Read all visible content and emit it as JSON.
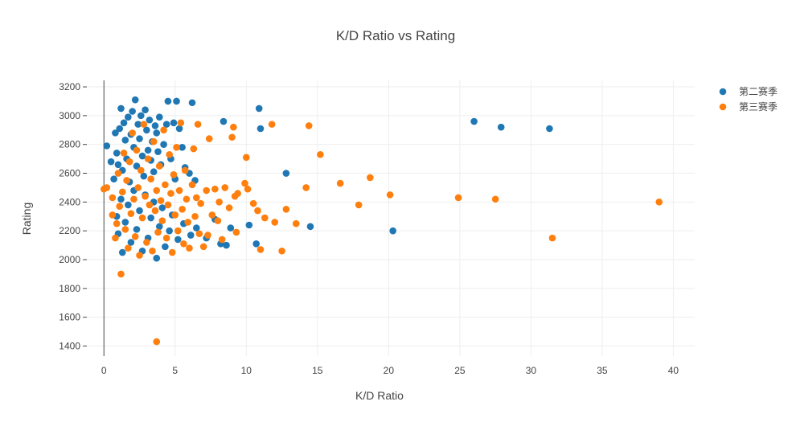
{
  "chart_data": {
    "type": "scatter",
    "title": "K/D Ratio vs Rating",
    "xlabel": "K/D Ratio",
    "ylabel": "Rating",
    "xlim": [
      -1.2,
      41.5
    ],
    "ylim": [
      1330,
      3245
    ],
    "x_ticks": [
      0,
      5,
      10,
      15,
      20,
      25,
      30,
      35,
      40
    ],
    "y_ticks": [
      1400,
      1600,
      1800,
      2000,
      2200,
      2400,
      2600,
      2800,
      3000,
      3200
    ],
    "grid": true,
    "legend": "top-right",
    "series": [
      {
        "name": "第二赛季",
        "color": "#1f77b4",
        "points": [
          [
            0.2,
            2790
          ],
          [
            0.5,
            2680
          ],
          [
            0.7,
            2560
          ],
          [
            0.8,
            2880
          ],
          [
            0.9,
            2740
          ],
          [
            1.0,
            2660
          ],
          [
            1.1,
            2910
          ],
          [
            1.2,
            3050
          ],
          [
            1.3,
            2620
          ],
          [
            1.4,
            2950
          ],
          [
            1.5,
            2830
          ],
          [
            1.6,
            2700
          ],
          [
            1.7,
            2990
          ],
          [
            1.8,
            2540
          ],
          [
            1.9,
            2870
          ],
          [
            2.0,
            3030
          ],
          [
            2.1,
            2780
          ],
          [
            2.2,
            3110
          ],
          [
            2.3,
            2650
          ],
          [
            2.4,
            2940
          ],
          [
            2.5,
            2840
          ],
          [
            2.6,
            3000
          ],
          [
            2.7,
            2720
          ],
          [
            2.8,
            2580
          ],
          [
            2.9,
            3040
          ],
          [
            3.0,
            2900
          ],
          [
            3.1,
            2760
          ],
          [
            3.2,
            2970
          ],
          [
            3.3,
            2690
          ],
          [
            3.4,
            2820
          ],
          [
            3.5,
            2610
          ],
          [
            3.6,
            2930
          ],
          [
            3.7,
            2880
          ],
          [
            3.8,
            2750
          ],
          [
            3.9,
            2990
          ],
          [
            4.0,
            2660
          ],
          [
            4.2,
            2800
          ],
          [
            4.4,
            2940
          ],
          [
            4.5,
            3100
          ],
          [
            4.7,
            2700
          ],
          [
            4.9,
            2950
          ],
          [
            5.0,
            2560
          ],
          [
            5.1,
            3100
          ],
          [
            5.3,
            2910
          ],
          [
            5.5,
            2780
          ],
          [
            5.7,
            2640
          ],
          [
            6.0,
            2600
          ],
          [
            6.2,
            3090
          ],
          [
            6.4,
            2550
          ],
          [
            0.9,
            2300
          ],
          [
            1.0,
            2180
          ],
          [
            1.2,
            2420
          ],
          [
            1.3,
            2050
          ],
          [
            1.5,
            2260
          ],
          [
            1.7,
            2380
          ],
          [
            1.9,
            2120
          ],
          [
            2.1,
            2480
          ],
          [
            2.3,
            2210
          ],
          [
            2.5,
            2340
          ],
          [
            2.7,
            2060
          ],
          [
            2.9,
            2450
          ],
          [
            3.1,
            2150
          ],
          [
            3.3,
            2290
          ],
          [
            3.5,
            2400
          ],
          [
            3.7,
            2010
          ],
          [
            3.9,
            2230
          ],
          [
            4.1,
            2360
          ],
          [
            4.3,
            2090
          ],
          [
            4.6,
            2200
          ],
          [
            4.8,
            2310
          ],
          [
            5.2,
            2140
          ],
          [
            5.6,
            2250
          ],
          [
            6.1,
            2170
          ],
          [
            6.5,
            2220
          ],
          [
            7.2,
            2150
          ],
          [
            7.8,
            2280
          ],
          [
            8.2,
            2110
          ],
          [
            8.4,
            2960
          ],
          [
            8.6,
            2100
          ],
          [
            8.9,
            2220
          ],
          [
            10.2,
            2240
          ],
          [
            10.7,
            2110
          ],
          [
            10.9,
            3050
          ],
          [
            11.0,
            2910
          ],
          [
            12.8,
            2600
          ],
          [
            14.5,
            2230
          ],
          [
            20.3,
            2200
          ],
          [
            26.0,
            2960
          ],
          [
            27.9,
            2920
          ],
          [
            31.3,
            2910
          ]
        ]
      },
      {
        "name": "第三赛季",
        "color": "#ff7f0e",
        "points": [
          [
            0.0,
            2490
          ],
          [
            0.2,
            2500
          ],
          [
            0.6,
            2430
          ],
          [
            0.6,
            2310
          ],
          [
            0.8,
            2150
          ],
          [
            0.9,
            2250
          ],
          [
            1.0,
            2600
          ],
          [
            1.1,
            2370
          ],
          [
            1.2,
            1900
          ],
          [
            1.3,
            2470
          ],
          [
            1.4,
            2740
          ],
          [
            1.5,
            2210
          ],
          [
            1.6,
            2550
          ],
          [
            1.7,
            2080
          ],
          [
            1.8,
            2680
          ],
          [
            1.9,
            2320
          ],
          [
            2.0,
            2880
          ],
          [
            2.1,
            2420
          ],
          [
            2.2,
            2160
          ],
          [
            2.3,
            2760
          ],
          [
            2.4,
            2500
          ],
          [
            2.5,
            2030
          ],
          [
            2.6,
            2620
          ],
          [
            2.7,
            2290
          ],
          [
            2.8,
            2940
          ],
          [
            2.9,
            2440
          ],
          [
            3.0,
            2120
          ],
          [
            3.1,
            2700
          ],
          [
            3.2,
            2380
          ],
          [
            3.3,
            2560
          ],
          [
            3.4,
            2060
          ],
          [
            3.5,
            2820
          ],
          [
            3.6,
            2340
          ],
          [
            3.7,
            2480
          ],
          [
            3.8,
            2190
          ],
          [
            3.9,
            2650
          ],
          [
            4.0,
            2410
          ],
          [
            4.1,
            2270
          ],
          [
            4.2,
            2900
          ],
          [
            4.3,
            2520
          ],
          [
            4.4,
            2150
          ],
          [
            4.5,
            2380
          ],
          [
            4.6,
            2730
          ],
          [
            4.7,
            2460
          ],
          [
            4.8,
            2050
          ],
          [
            4.9,
            2590
          ],
          [
            5.0,
            2310
          ],
          [
            5.1,
            2780
          ],
          [
            5.2,
            2200
          ],
          [
            5.3,
            2480
          ],
          [
            5.4,
            2950
          ],
          [
            5.5,
            2350
          ],
          [
            5.6,
            2110
          ],
          [
            5.7,
            2620
          ],
          [
            5.8,
            2420
          ],
          [
            5.9,
            2260
          ],
          [
            6.0,
            2080
          ],
          [
            6.2,
            2520
          ],
          [
            6.3,
            2770
          ],
          [
            6.4,
            2300
          ],
          [
            6.5,
            2430
          ],
          [
            6.6,
            2940
          ],
          [
            6.7,
            2180
          ],
          [
            6.8,
            2390
          ],
          [
            7.0,
            2090
          ],
          [
            7.2,
            2480
          ],
          [
            7.3,
            2170
          ],
          [
            7.4,
            2840
          ],
          [
            7.6,
            2310
          ],
          [
            7.8,
            2490
          ],
          [
            8.0,
            2270
          ],
          [
            8.1,
            2400
          ],
          [
            8.3,
            2140
          ],
          [
            8.5,
            2500
          ],
          [
            8.8,
            2360
          ],
          [
            9.0,
            2850
          ],
          [
            9.1,
            2920
          ],
          [
            9.2,
            2440
          ],
          [
            9.3,
            2190
          ],
          [
            9.4,
            2460
          ],
          [
            9.9,
            2530
          ],
          [
            10.0,
            2710
          ],
          [
            10.1,
            2490
          ],
          [
            10.5,
            2390
          ],
          [
            10.8,
            2340
          ],
          [
            11.0,
            2070
          ],
          [
            11.3,
            2290
          ],
          [
            11.8,
            2940
          ],
          [
            12.0,
            2260
          ],
          [
            12.5,
            2060
          ],
          [
            12.8,
            2350
          ],
          [
            13.5,
            2250
          ],
          [
            14.2,
            2500
          ],
          [
            14.4,
            2930
          ],
          [
            15.2,
            2730
          ],
          [
            16.6,
            2530
          ],
          [
            17.9,
            2380
          ],
          [
            18.7,
            2570
          ],
          [
            20.1,
            2450
          ],
          [
            24.9,
            2430
          ],
          [
            27.5,
            2420
          ],
          [
            31.5,
            2150
          ],
          [
            39.0,
            2400
          ],
          [
            3.7,
            1430
          ]
        ]
      }
    ]
  }
}
